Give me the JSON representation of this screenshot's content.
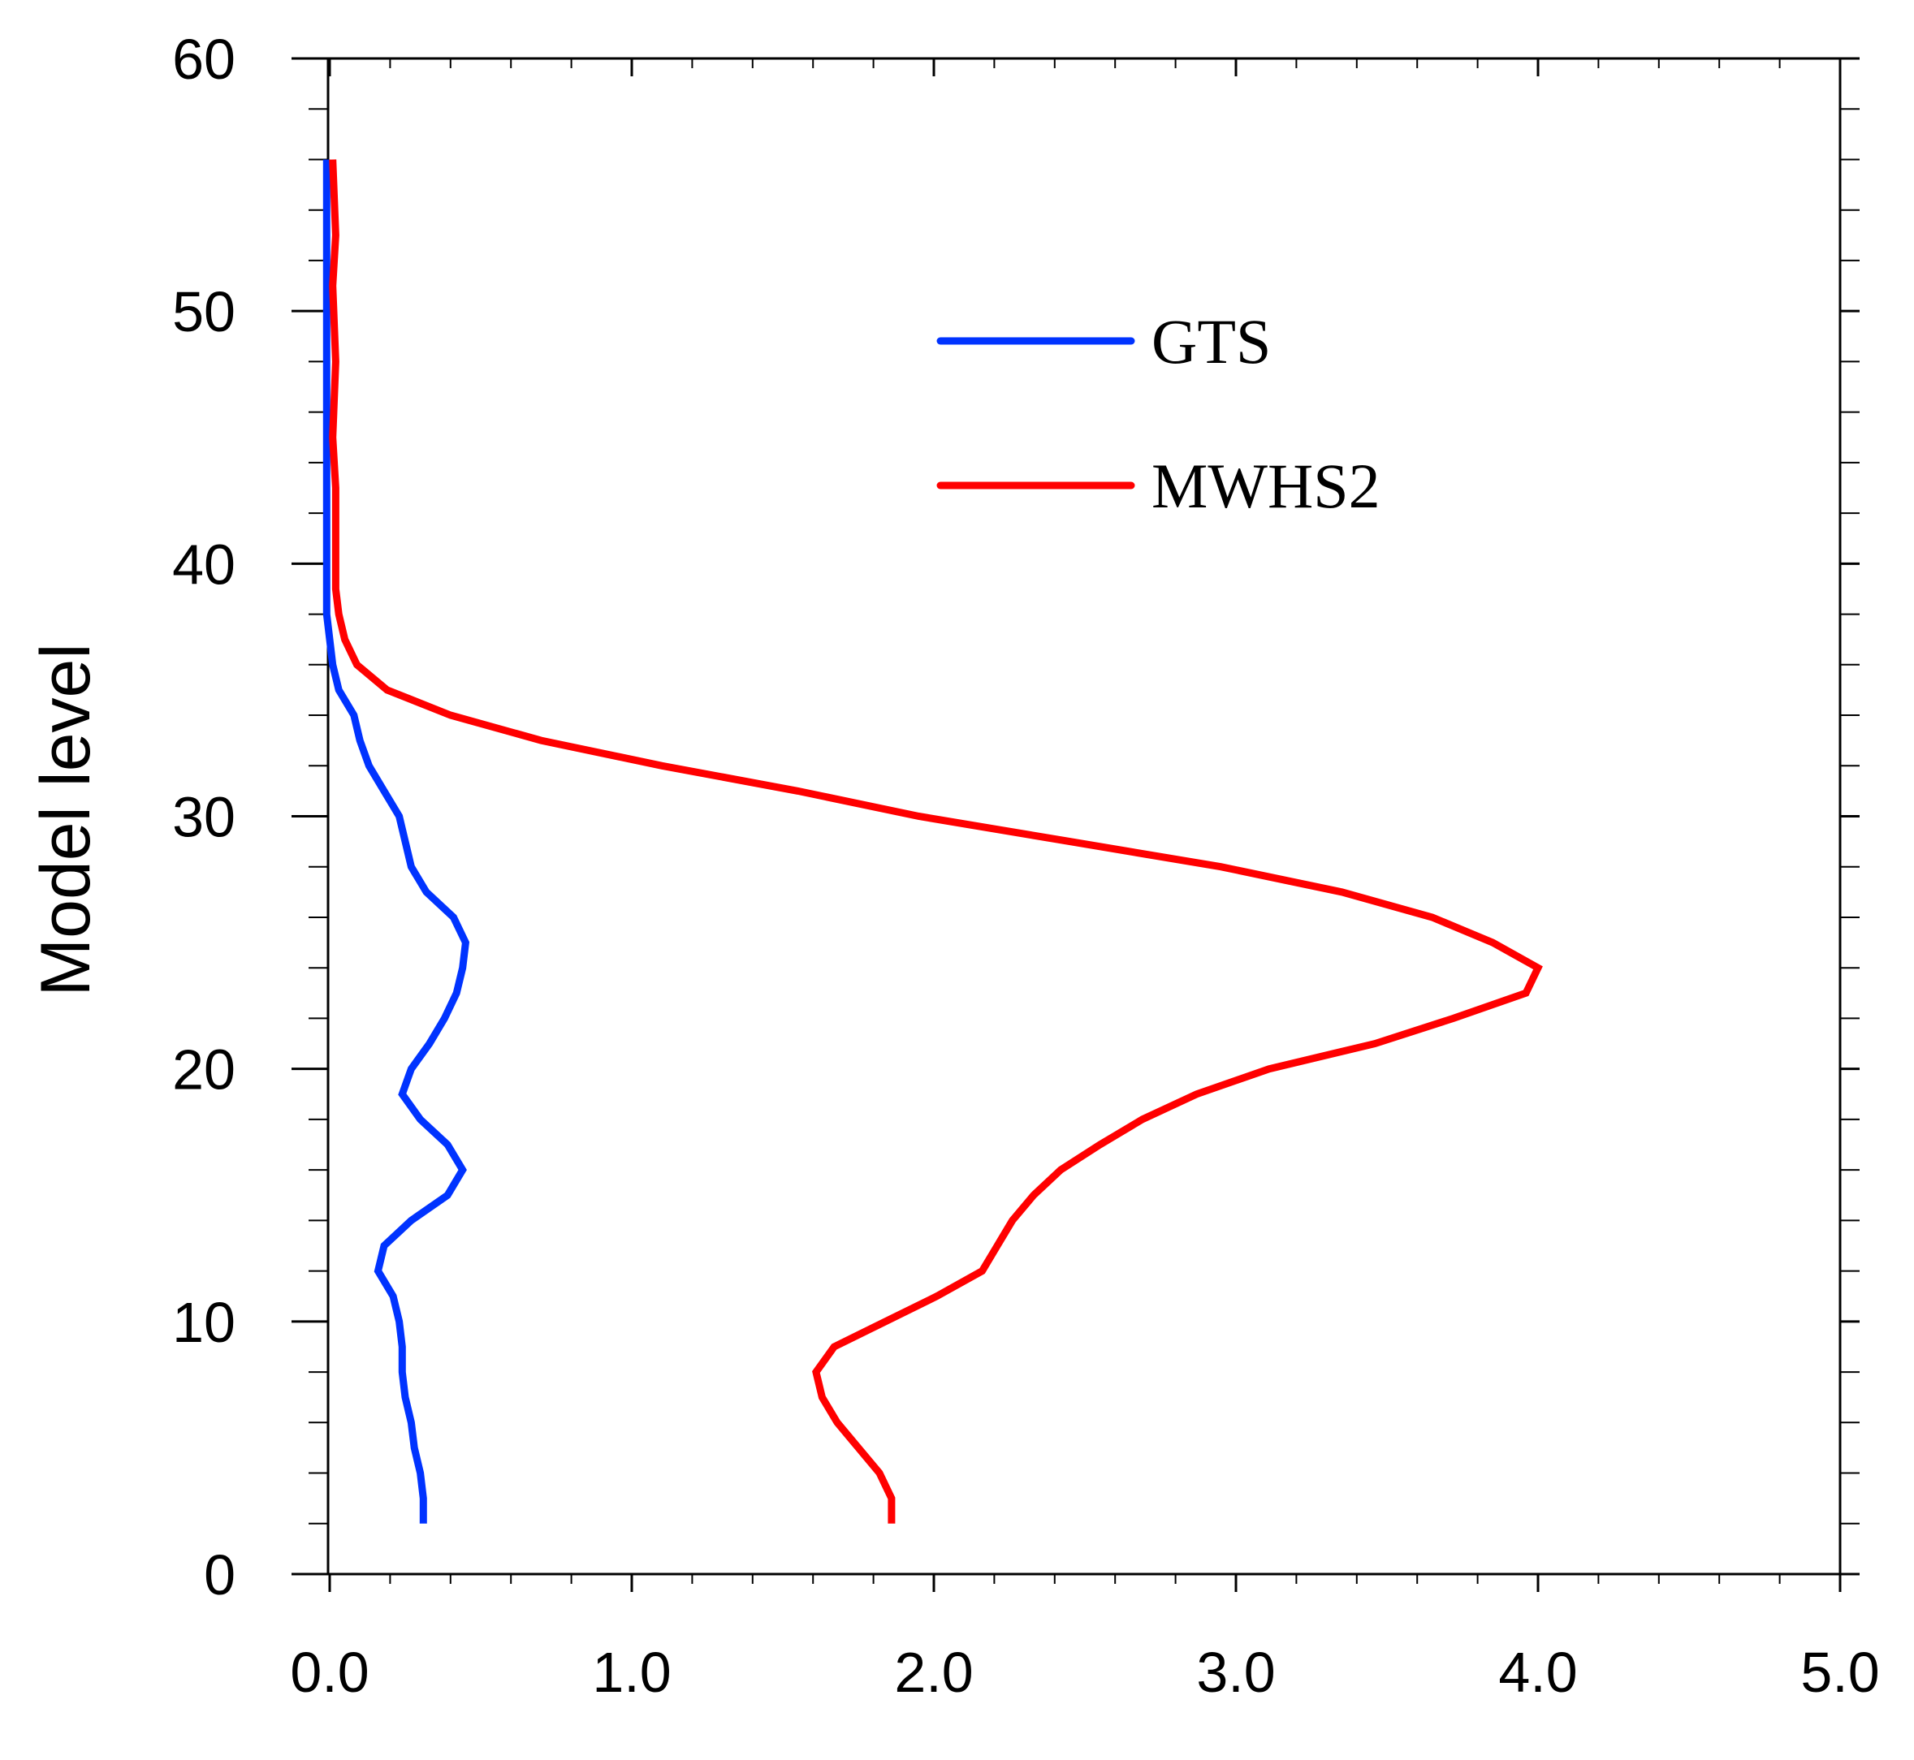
{
  "chart_data": {
    "type": "line",
    "title": "",
    "xlabel": "",
    "ylabel": "Model level",
    "xlim": [
      0,
      5
    ],
    "ylim": [
      0,
      60
    ],
    "x_ticks": [
      "0.0",
      "1.0",
      "2.0",
      "3.0",
      "4.0",
      "5.0"
    ],
    "y_ticks": [
      "0",
      "10",
      "20",
      "30",
      "40",
      "50",
      "60"
    ],
    "grid": false,
    "legend_position": "upper-right",
    "series": [
      {
        "name": "GTS",
        "color": "#0033ff",
        "points": [
          [
            0.31,
            2
          ],
          [
            0.31,
            3
          ],
          [
            0.3,
            4
          ],
          [
            0.28,
            5
          ],
          [
            0.27,
            6
          ],
          [
            0.25,
            7
          ],
          [
            0.24,
            8
          ],
          [
            0.24,
            9
          ],
          [
            0.23,
            10
          ],
          [
            0.21,
            11
          ],
          [
            0.16,
            12
          ],
          [
            0.18,
            13
          ],
          [
            0.27,
            14
          ],
          [
            0.39,
            15
          ],
          [
            0.44,
            16
          ],
          [
            0.39,
            17
          ],
          [
            0.3,
            18
          ],
          [
            0.24,
            19
          ],
          [
            0.27,
            20
          ],
          [
            0.33,
            21
          ],
          [
            0.38,
            22
          ],
          [
            0.42,
            23
          ],
          [
            0.44,
            24
          ],
          [
            0.45,
            25
          ],
          [
            0.41,
            26
          ],
          [
            0.32,
            27
          ],
          [
            0.27,
            28
          ],
          [
            0.25,
            29
          ],
          [
            0.23,
            30
          ],
          [
            0.18,
            31
          ],
          [
            0.13,
            32
          ],
          [
            0.1,
            33
          ],
          [
            0.08,
            34
          ],
          [
            0.03,
            35
          ],
          [
            0.01,
            36
          ],
          [
            0.0,
            37
          ],
          [
            -0.01,
            38
          ],
          [
            -0.01,
            39
          ],
          [
            -0.01,
            40
          ],
          [
            -0.01,
            42
          ],
          [
            -0.01,
            45
          ],
          [
            -0.01,
            48
          ],
          [
            -0.01,
            50
          ],
          [
            -0.01,
            53
          ],
          [
            -0.01,
            56
          ]
        ]
      },
      {
        "name": "MWHS2",
        "color": "#ff0000",
        "points": [
          [
            1.86,
            2
          ],
          [
            1.86,
            3
          ],
          [
            1.82,
            4
          ],
          [
            1.75,
            5
          ],
          [
            1.68,
            6
          ],
          [
            1.63,
            7
          ],
          [
            1.61,
            8
          ],
          [
            1.67,
            9
          ],
          [
            1.84,
            10
          ],
          [
            2.01,
            11
          ],
          [
            2.16,
            12
          ],
          [
            2.21,
            13
          ],
          [
            2.26,
            14
          ],
          [
            2.33,
            15
          ],
          [
            2.42,
            16
          ],
          [
            2.55,
            17
          ],
          [
            2.69,
            18
          ],
          [
            2.87,
            19
          ],
          [
            3.11,
            20
          ],
          [
            3.46,
            21
          ],
          [
            3.72,
            22
          ],
          [
            3.96,
            23
          ],
          [
            4.0,
            24
          ],
          [
            3.85,
            25
          ],
          [
            3.65,
            26
          ],
          [
            3.35,
            27
          ],
          [
            2.95,
            28
          ],
          [
            2.45,
            29
          ],
          [
            1.95,
            30
          ],
          [
            1.55,
            31
          ],
          [
            1.1,
            32
          ],
          [
            0.7,
            33
          ],
          [
            0.4,
            34
          ],
          [
            0.19,
            35
          ],
          [
            0.09,
            36
          ],
          [
            0.05,
            37
          ],
          [
            0.03,
            38
          ],
          [
            0.02,
            39
          ],
          [
            0.02,
            40
          ],
          [
            0.02,
            43
          ],
          [
            0.01,
            45
          ],
          [
            0.02,
            48
          ],
          [
            0.01,
            51
          ],
          [
            0.02,
            53
          ],
          [
            0.01,
            56
          ]
        ]
      }
    ]
  }
}
